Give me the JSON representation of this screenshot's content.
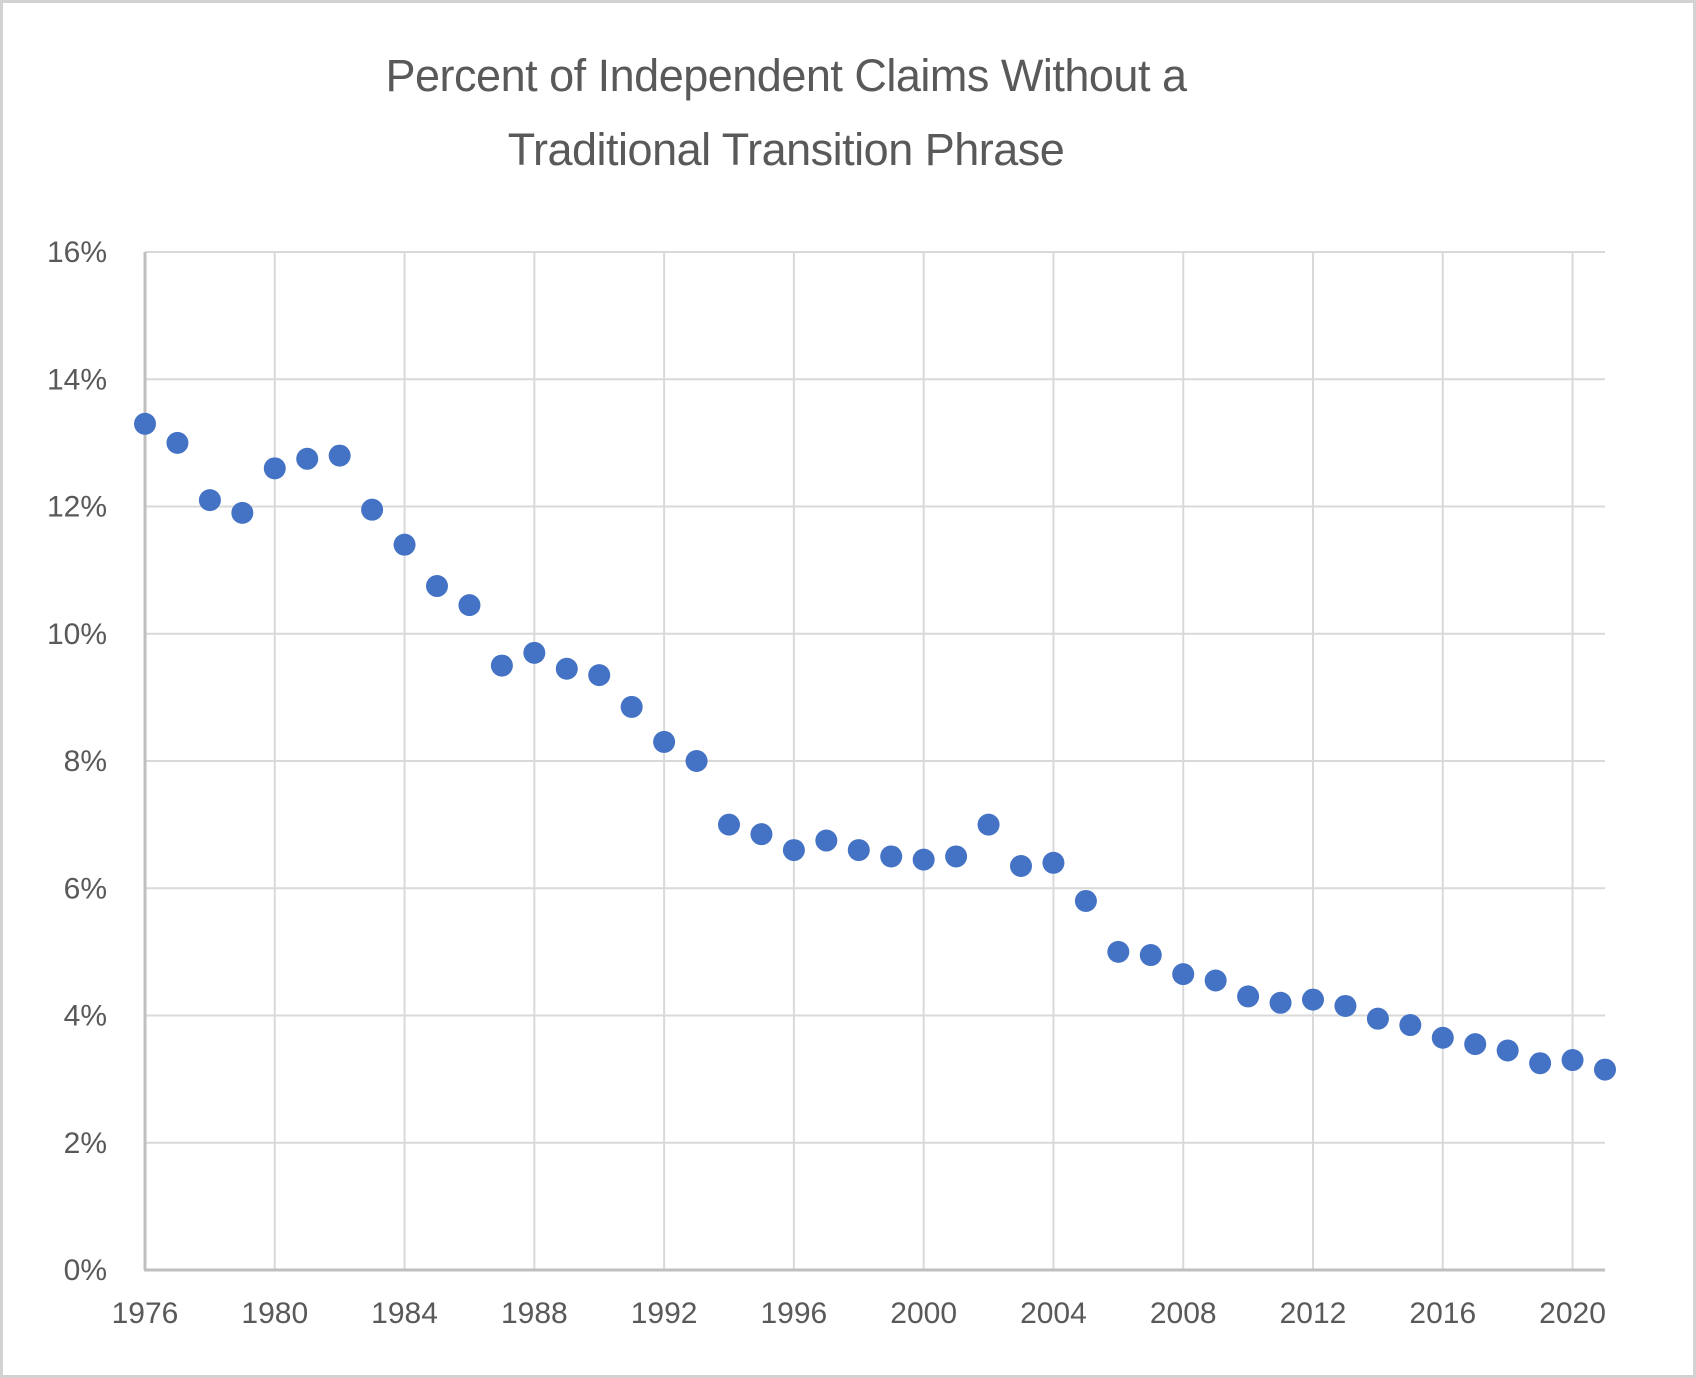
{
  "window": {
    "background": "#ffffff",
    "border_color": "#d2d2d2"
  },
  "chart_data": {
    "type": "scatter",
    "title": "Percent of Independent Claims Without a Traditional Transition Phrase",
    "title_lines": [
      "Percent of Independent Claims Without a",
      "Traditional Transition Phrase"
    ],
    "xlabel": "",
    "ylabel": "",
    "legend": "none",
    "grid": true,
    "xlim": [
      1976,
      2021
    ],
    "ylim": [
      0,
      16
    ],
    "x_ticks": [
      1976,
      1980,
      1984,
      1988,
      1992,
      1996,
      2000,
      2004,
      2008,
      2012,
      2016,
      2020
    ],
    "y_ticks": [
      0,
      2,
      4,
      6,
      8,
      10,
      12,
      14,
      16
    ],
    "y_tick_suffix": "%",
    "x": [
      1976,
      1977,
      1978,
      1979,
      1980,
      1981,
      1982,
      1983,
      1984,
      1985,
      1986,
      1987,
      1988,
      1989,
      1990,
      1991,
      1992,
      1993,
      1994,
      1995,
      1996,
      1997,
      1998,
      1999,
      2000,
      2001,
      2002,
      2003,
      2004,
      2005,
      2006,
      2007,
      2008,
      2009,
      2010,
      2011,
      2012,
      2013,
      2014,
      2015,
      2016,
      2017,
      2018,
      2019,
      2020,
      2021
    ],
    "values": [
      13.3,
      13.0,
      12.1,
      11.9,
      12.6,
      12.75,
      12.8,
      11.95,
      11.4,
      10.75,
      10.45,
      9.5,
      9.7,
      9.45,
      9.35,
      8.85,
      8.3,
      8.0,
      7.0,
      6.85,
      6.6,
      6.75,
      6.6,
      6.5,
      6.45,
      6.5,
      7.0,
      6.35,
      6.4,
      5.8,
      5.0,
      4.95,
      4.65,
      4.55,
      4.3,
      4.2,
      4.25,
      4.15,
      3.95,
      3.85,
      3.65,
      3.55,
      3.45,
      3.25,
      3.3,
      3.15
    ],
    "colors": {
      "marker": "#4472C4",
      "gridline": "#D9D9D9",
      "axis_line": "#BFBFBF",
      "text": "#595959"
    }
  }
}
